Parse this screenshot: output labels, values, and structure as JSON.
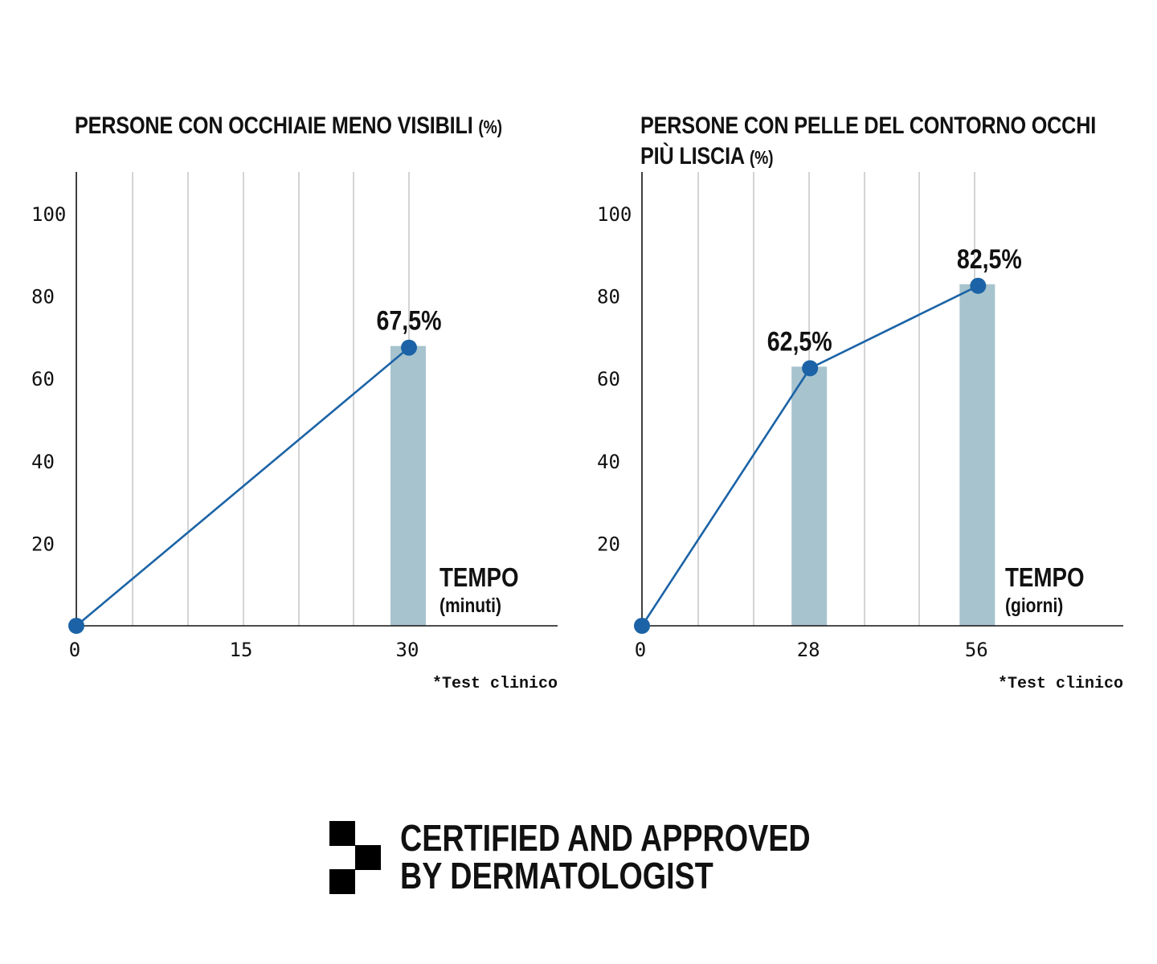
{
  "colors": {
    "line": "#1b63a6",
    "bar": "#a7c3ce",
    "grid": "#bdbdbd",
    "axis": "#111111",
    "text": "#111111"
  },
  "charts": [
    {
      "title_main": "PERSONE CON OCCHIAIE MENO VISIBILI",
      "title_unit": "(%)",
      "axis_label": "TEMPO",
      "axis_unit": "(minuti)",
      "footnote": "*Test clinico"
    },
    {
      "title_main_line1": "PERSONE CON PELLE DEL CONTORNO OCCHI",
      "title_main_line2": "PIÙ LISCIA",
      "title_unit": "(%)",
      "axis_label": "TEMPO",
      "axis_unit": "(giorni)",
      "footnote": "*Test clinico"
    }
  ],
  "chart_data": [
    {
      "type": "bar",
      "title": "PERSONE CON OCCHIAIE MENO VISIBILI (%)",
      "xlabel": "TEMPO (minuti)",
      "ylabel": "",
      "xlim": [
        0,
        43
      ],
      "ylim": [
        0,
        110
      ],
      "x_ticks": [
        0,
        15,
        30
      ],
      "y_ticks": [
        20,
        40,
        60,
        80,
        100
      ],
      "grid": "vertical",
      "bars": [
        {
          "x": 30,
          "value": 67.5
        }
      ],
      "series": [
        {
          "type": "line",
          "points": [
            {
              "x": 0,
              "y": 0
            },
            {
              "x": 30,
              "y": 67.5
            }
          ]
        }
      ],
      "data_labels": [
        "67,5%"
      ],
      "annotations": [
        "*Test clinico"
      ]
    },
    {
      "type": "bar",
      "title": "PERSONE CON PELLE DEL CONTORNO OCCHI PIÙ LISCIA (%)",
      "xlabel": "TEMPO (giorni)",
      "ylabel": "",
      "xlim": [
        0,
        80
      ],
      "ylim": [
        0,
        110
      ],
      "x_ticks": [
        0,
        28,
        56
      ],
      "y_ticks": [
        20,
        40,
        60,
        80,
        100
      ],
      "grid": "vertical",
      "bars": [
        {
          "x": 28,
          "value": 62.5
        },
        {
          "x": 56,
          "value": 82.5
        }
      ],
      "series": [
        {
          "type": "line",
          "points": [
            {
              "x": 0,
              "y": 0
            },
            {
              "x": 28,
              "y": 62.5
            },
            {
              "x": 56,
              "y": 82.5
            }
          ]
        }
      ],
      "data_labels": [
        "62,5%",
        "82,5%"
      ],
      "annotations": [
        "*Test clinico"
      ]
    }
  ],
  "badge": {
    "line1": "CERTIFIED AND APPROVED",
    "line2": "BY DERMATOLOGIST"
  }
}
